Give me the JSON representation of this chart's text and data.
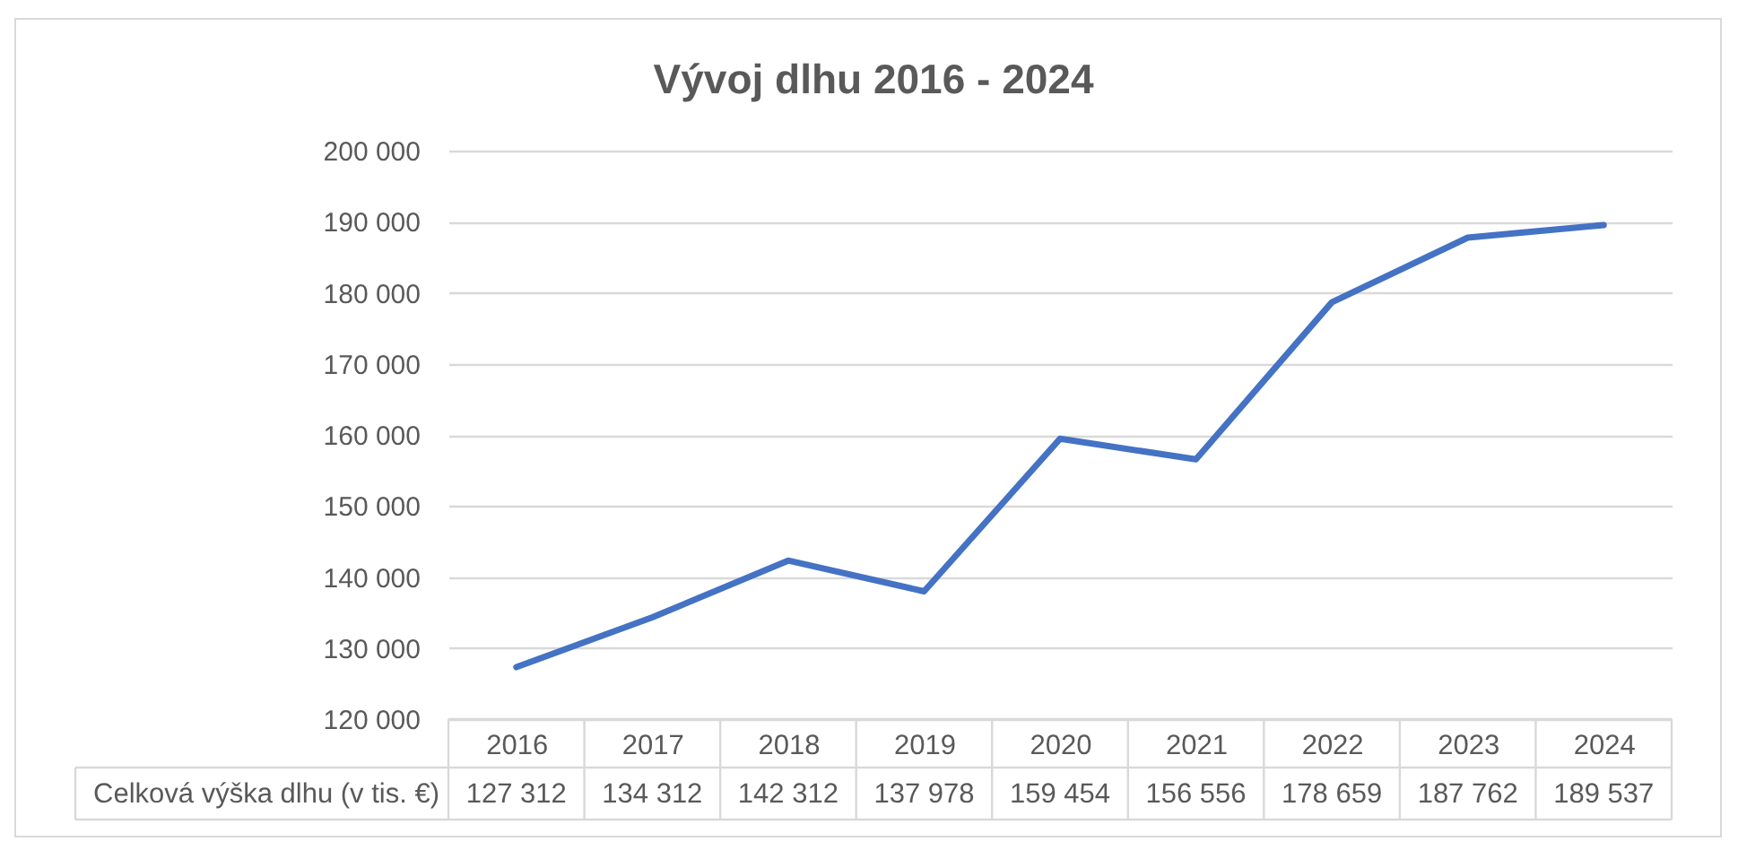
{
  "chart_data": {
    "type": "line",
    "title": "Vývoj dlhu 2016 - 2024",
    "categories": [
      "2016",
      "2017",
      "2018",
      "2019",
      "2020",
      "2021",
      "2022",
      "2023",
      "2024"
    ],
    "series": [
      {
        "name": "Celková výška dlhu (v tis. €)",
        "color": "#4472c4",
        "values": [
          127312,
          134312,
          142312,
          137978,
          159454,
          156556,
          178659,
          187762,
          189537
        ],
        "value_labels": [
          "127 312",
          "134 312",
          "142 312",
          "137 978",
          "159 454",
          "156 556",
          "178 659",
          "187 762",
          "189 537"
        ]
      }
    ],
    "ylim": [
      120000,
      200000
    ],
    "yticks": [
      {
        "value": 120000,
        "label": "120 000"
      },
      {
        "value": 130000,
        "label": "130 000"
      },
      {
        "value": 140000,
        "label": "140 000"
      },
      {
        "value": 150000,
        "label": "150 000"
      },
      {
        "value": 160000,
        "label": "160 000"
      },
      {
        "value": 170000,
        "label": "170 000"
      },
      {
        "value": 180000,
        "label": "180 000"
      },
      {
        "value": 190000,
        "label": "190 000"
      },
      {
        "value": 200000,
        "label": "200 000"
      }
    ],
    "grid": "y",
    "legend": false,
    "line_style": "solid"
  }
}
